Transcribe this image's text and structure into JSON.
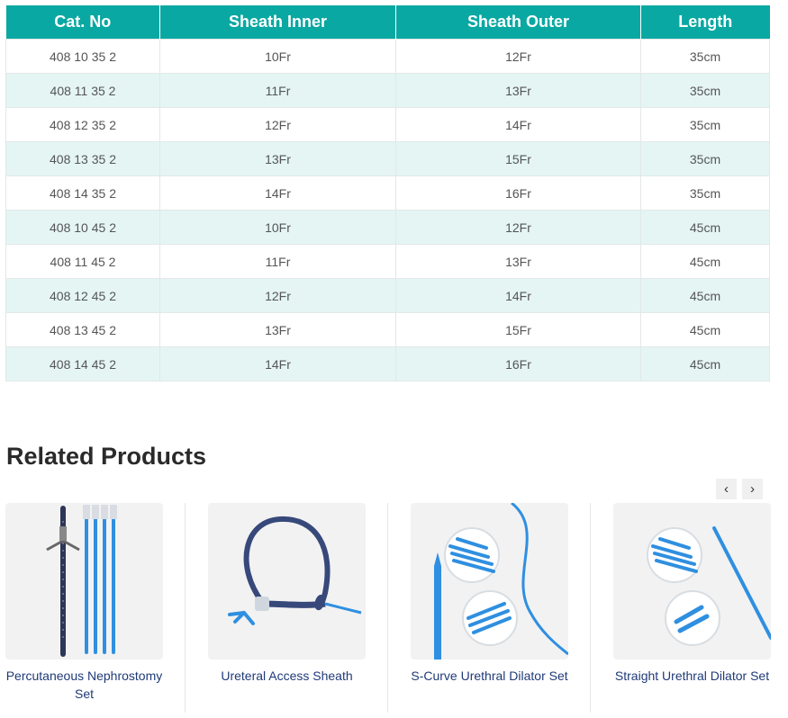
{
  "table": {
    "headers": [
      "Cat. No",
      "Sheath Inner",
      "Sheath Outer",
      "Length"
    ],
    "rows": [
      [
        "408 10 35 2",
        "10Fr",
        "12Fr",
        "35cm"
      ],
      [
        "408 11 35 2",
        "11Fr",
        "13Fr",
        "35cm"
      ],
      [
        "408 12 35 2",
        "12Fr",
        "14Fr",
        "35cm"
      ],
      [
        "408 13 35 2",
        "13Fr",
        "15Fr",
        "35cm"
      ],
      [
        "408 14 35 2",
        "14Fr",
        "16Fr",
        "35cm"
      ],
      [
        "408 10 45 2",
        "10Fr",
        "12Fr",
        "45cm"
      ],
      [
        "408 11 45 2",
        "11Fr",
        "13Fr",
        "45cm"
      ],
      [
        "408 12 45 2",
        "12Fr",
        "14Fr",
        "45cm"
      ],
      [
        "408 13 45 2",
        "13Fr",
        "15Fr",
        "45cm"
      ],
      [
        "408 14 45 2",
        "14Fr",
        "16Fr",
        "45cm"
      ]
    ]
  },
  "related": {
    "title": "Related Products",
    "prev_icon": "chevron-left-icon",
    "next_icon": "chevron-right-icon",
    "prev_glyph": "‹",
    "next_glyph": "›",
    "products": [
      {
        "name": "Percutaneous Nephrostomy Set",
        "image": "nephrostomy-set-image"
      },
      {
        "name": "Ureteral Access Sheath",
        "image": "ureteral-sheath-image"
      },
      {
        "name": "S-Curve Urethral Dilator Set",
        "image": "s-curve-dilator-image"
      },
      {
        "name": "Straight Urethral Dilator Set",
        "image": "straight-dilator-image"
      }
    ]
  },
  "colors": {
    "header_bg": "#0aa8a2",
    "alt_row_bg": "#e4f5f4",
    "product_blue": "#2f8fe0",
    "caption_text": "#1f3a78"
  }
}
